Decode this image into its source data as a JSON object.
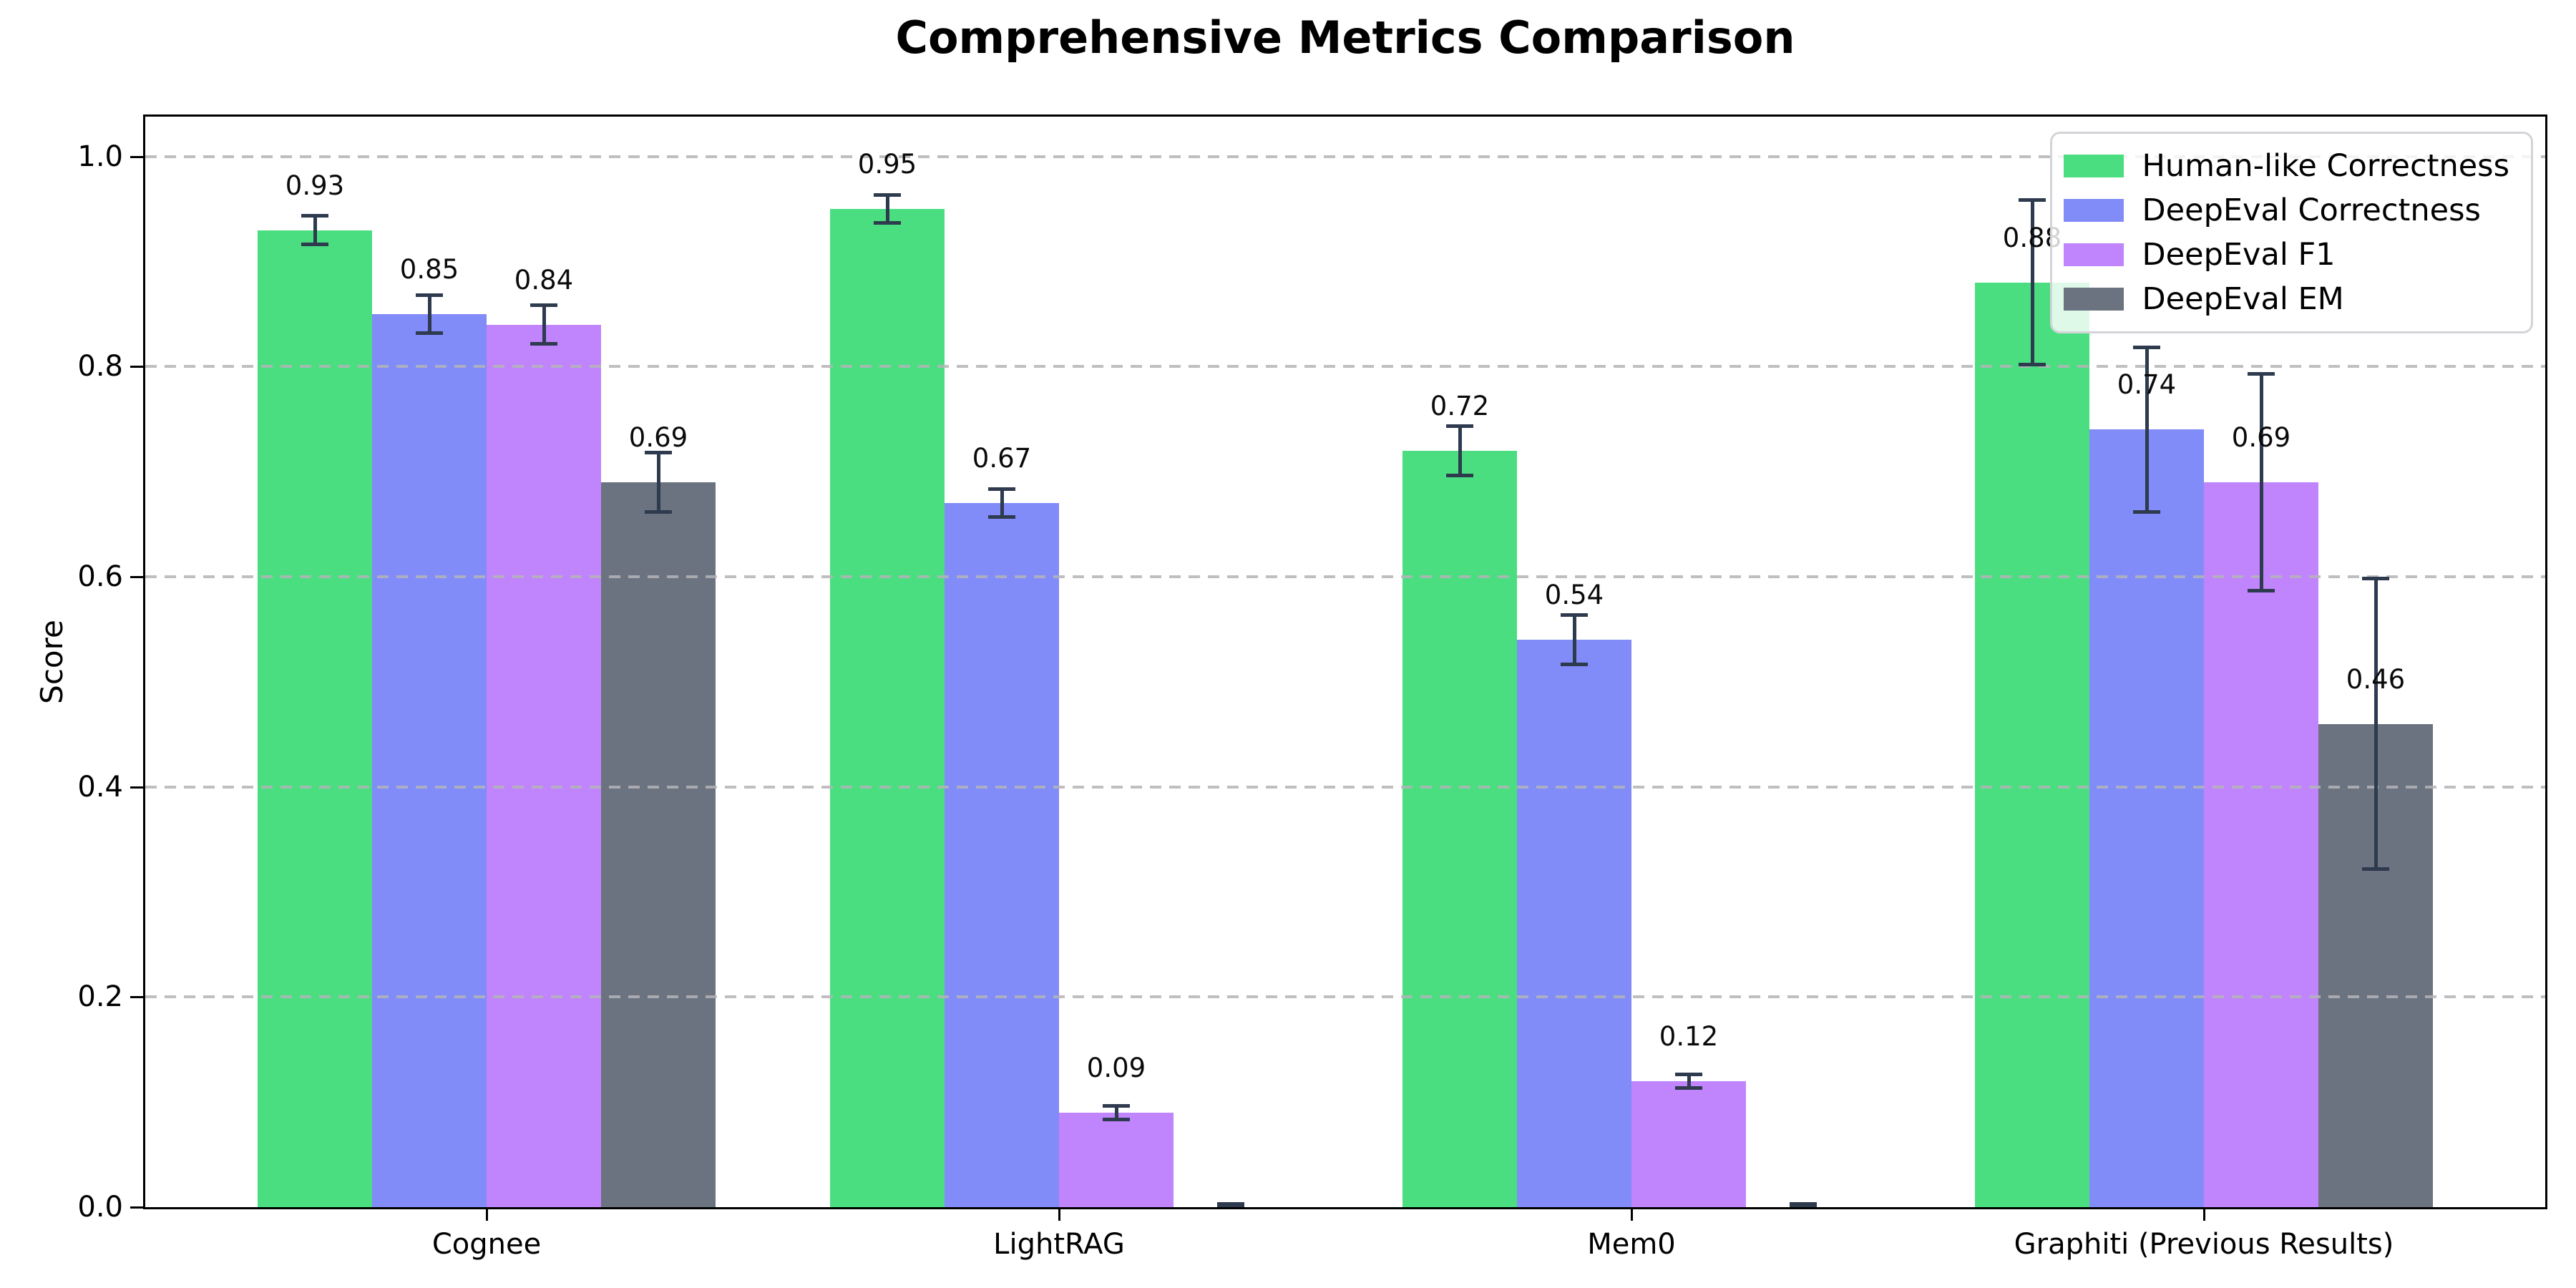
{
  "chart_data": {
    "type": "bar",
    "title": "Comprehensive Metrics Comparison",
    "ylabel": "Score",
    "xlabel": "",
    "categories": [
      "Cognee",
      "LightRAG",
      "Mem0",
      "Graphiti (Previous Results)"
    ],
    "series": [
      {
        "name": "Human-like Correctness",
        "color": "#4ade80",
        "values": [
          0.93,
          0.95,
          0.72,
          0.88
        ],
        "errors": [
          0.015,
          0.015,
          0.025,
          0.08
        ],
        "labels": [
          "0.93",
          "0.95",
          "0.72",
          "0.88"
        ]
      },
      {
        "name": "DeepEval Correctness",
        "color": "#818cf8",
        "values": [
          0.85,
          0.67,
          0.54,
          0.74
        ],
        "errors": [
          0.02,
          0.015,
          0.025,
          0.08
        ],
        "labels": [
          "0.85",
          "0.67",
          "0.54",
          "0.74"
        ]
      },
      {
        "name": "DeepEval F1",
        "color": "#c084fc",
        "values": [
          0.84,
          0.09,
          0.12,
          0.69
        ],
        "errors": [
          0.02,
          0.008,
          0.008,
          0.105
        ],
        "labels": [
          "0.84",
          "0.09",
          "0.12",
          "0.69"
        ]
      },
      {
        "name": "DeepEval EM",
        "color": "#6b7280",
        "values": [
          0.69,
          0.0,
          0.0,
          0.46
        ],
        "errors": [
          0.03,
          0.005,
          0.005,
          0.14
        ],
        "labels": [
          "0.69",
          "",
          "",
          "0.46"
        ]
      }
    ],
    "y_ticks": [
      "0.0",
      "0.2",
      "0.4",
      "0.6",
      "0.8",
      "1.0"
    ],
    "ylim": [
      0,
      1.04
    ],
    "grid": "horizontal-dashed",
    "grid_over_bars": true,
    "legend_position": "upper-right",
    "colors": {
      "error_bar": "#2e3a4d",
      "grid": "#b4b4b8",
      "axis": "#000000",
      "legend_border": "#d4d4d8"
    }
  }
}
